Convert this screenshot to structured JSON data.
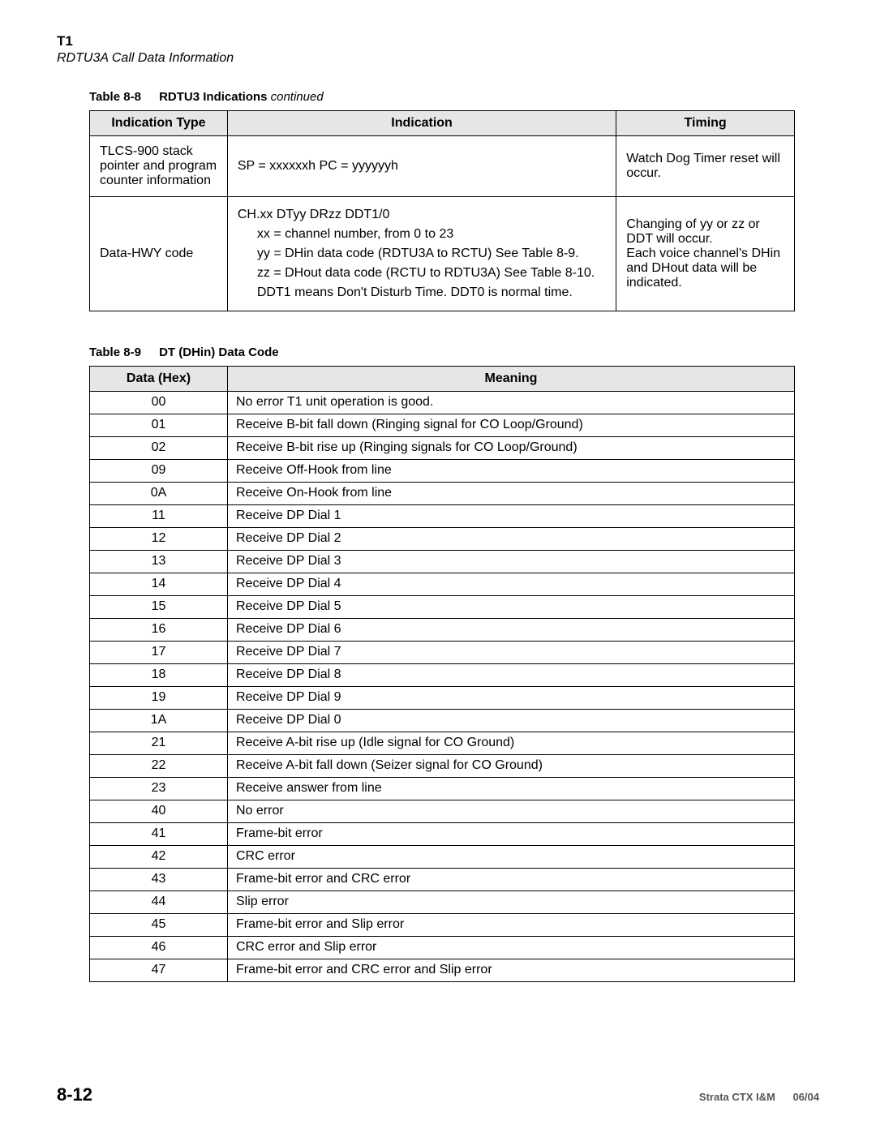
{
  "header": {
    "title": "T1",
    "subtitle": "RDTU3A Call Data Information"
  },
  "table88": {
    "caption_label": "Table 8-8",
    "caption_name": "RDTU3 Indications",
    "caption_cont": "continued",
    "head": {
      "type": "Indication Type",
      "indication": "Indication",
      "timing": "Timing"
    },
    "rows": [
      {
        "type": "TLCS-900 stack pointer and program counter information",
        "indication": [
          "SP = xxxxxxh  PC = yyyyyyh"
        ],
        "indication_sub": [],
        "timing": "Watch Dog Timer reset will occur."
      },
      {
        "type": "Data-HWY code",
        "indication": [
          "CH.xx DTyy DRzz DDT1/0"
        ],
        "indication_sub": [
          "xx = channel number, from 0 to 23",
          "yy = DHin data code (RDTU3A to RCTU)  See Table 8-9.",
          "zz = DHout data code (RCTU to RDTU3A)  See Table 8-10.",
          "DDT1 means Don't Disturb Time. DDT0 is normal time."
        ],
        "timing": "Changing of yy or zz or DDT will occur.\nEach voice channel's DHin and DHout data will be indicated."
      }
    ]
  },
  "table89": {
    "caption_label": "Table 8-9",
    "caption_name": "DT (DHin) Data Code",
    "head": {
      "hex": "Data (Hex)",
      "meaning": "Meaning"
    },
    "rows": [
      {
        "hex": "00",
        "meaning": "No error T1 unit operation is good."
      },
      {
        "hex": "01",
        "meaning": "Receive B-bit fall down (Ringing signal for CO Loop/Ground)"
      },
      {
        "hex": "02",
        "meaning": "Receive B-bit rise up (Ringing signals for CO Loop/Ground)"
      },
      {
        "hex": "09",
        "meaning": "Receive Off-Hook from line"
      },
      {
        "hex": "0A",
        "meaning": "Receive On-Hook from line"
      },
      {
        "hex": "11",
        "meaning": "Receive DP Dial 1"
      },
      {
        "hex": "12",
        "meaning": "Receive DP Dial 2"
      },
      {
        "hex": "13",
        "meaning": "Receive DP Dial 3"
      },
      {
        "hex": "14",
        "meaning": "Receive DP Dial 4"
      },
      {
        "hex": "15",
        "meaning": "Receive DP Dial 5"
      },
      {
        "hex": "16",
        "meaning": "Receive DP Dial 6"
      },
      {
        "hex": "17",
        "meaning": "Receive DP Dial 7"
      },
      {
        "hex": "18",
        "meaning": "Receive DP Dial 8"
      },
      {
        "hex": "19",
        "meaning": "Receive DP Dial 9"
      },
      {
        "hex": "1A",
        "meaning": "Receive DP Dial 0"
      },
      {
        "hex": "21",
        "meaning": "Receive A-bit rise up   (Idle signal for CO Ground)"
      },
      {
        "hex": "22",
        "meaning": "Receive A-bit fall down (Seizer signal for CO Ground)"
      },
      {
        "hex": "23",
        "meaning": "Receive answer from line"
      },
      {
        "hex": "40",
        "meaning": "No error"
      },
      {
        "hex": "41",
        "meaning": "Frame-bit error"
      },
      {
        "hex": "42",
        "meaning": "CRC error"
      },
      {
        "hex": "43",
        "meaning": "Frame-bit error and CRC error"
      },
      {
        "hex": "44",
        "meaning": "Slip error"
      },
      {
        "hex": "45",
        "meaning": "Frame-bit error and Slip error"
      },
      {
        "hex": "46",
        "meaning": "CRC error and Slip error"
      },
      {
        "hex": "47",
        "meaning": "Frame-bit error and CRC error and Slip error"
      }
    ]
  },
  "footer": {
    "page": "8-12",
    "doc": "Strata CTX I&M",
    "date": "06/04"
  }
}
